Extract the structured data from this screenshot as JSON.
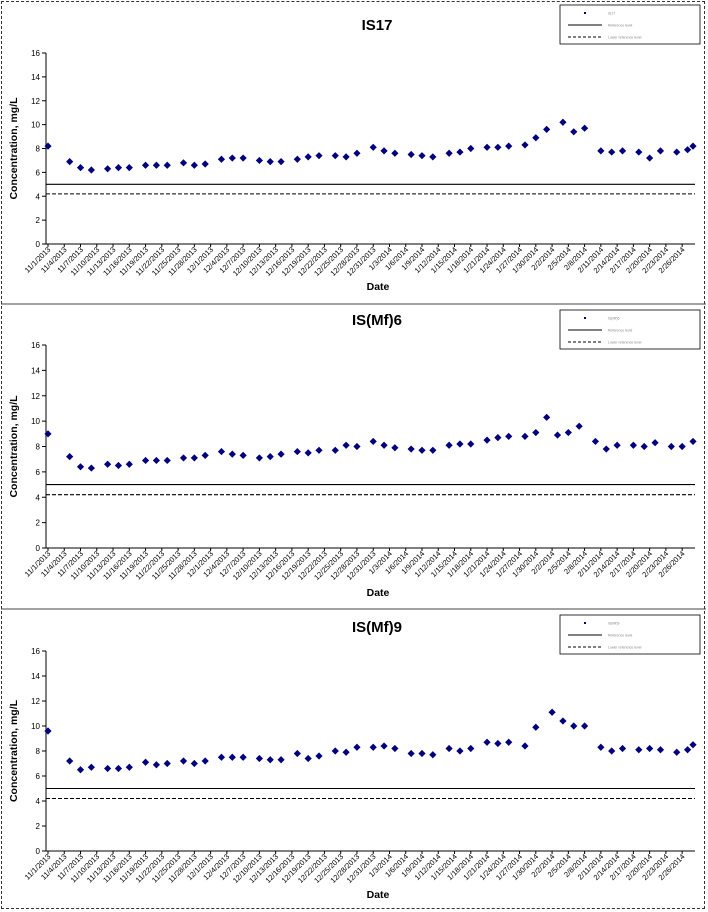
{
  "chart_data": [
    {
      "type": "scatter",
      "title": "IS17",
      "xlabel": "Date",
      "ylabel": "Concentration, mg/L",
      "ylim": [
        0,
        16
      ],
      "yticks": [
        "0",
        "2",
        "4",
        "6",
        "8",
        "10",
        "12",
        "14",
        "16"
      ],
      "xrange": [
        "11/1/2013",
        "2/28/2014"
      ],
      "xticks": [
        "11/1/2013",
        "11/4/2013",
        "11/7/2013",
        "11/10/2013",
        "11/13/2013",
        "11/16/2013",
        "11/19/2013",
        "11/22/2013",
        "11/25/2013",
        "11/28/2013",
        "12/1/2013",
        "12/4/2013",
        "12/7/2013",
        "12/10/2013",
        "12/13/2013",
        "12/16/2013",
        "12/19/2013",
        "12/22/2013",
        "12/25/2013",
        "12/28/2013",
        "12/31/2013",
        "1/3/2014",
        "1/6/2014",
        "1/9/2014",
        "1/12/2014",
        "1/15/2014",
        "1/18/2014",
        "1/21/2014",
        "1/24/2014",
        "1/27/2014",
        "1/30/2014",
        "2/2/2014",
        "2/5/2014",
        "2/8/2014",
        "2/11/2014",
        "2/14/2014",
        "2/17/2014",
        "2/20/2014",
        "2/23/2014",
        "2/26/2014"
      ],
      "legend": [
        "IS17",
        "Reference level",
        "Lower reference level"
      ],
      "legend_position": "top-right",
      "series": [
        {
          "name": "IS17",
          "marker": "diamond",
          "color": "#00007f",
          "x": [
            "11/1/2013",
            "11/5/2013",
            "11/7/2013",
            "11/9/2013",
            "11/12/2013",
            "11/14/2013",
            "11/16/2013",
            "11/19/2013",
            "11/21/2013",
            "11/23/2013",
            "11/26/2013",
            "11/28/2013",
            "11/30/2013",
            "12/3/2013",
            "12/5/2013",
            "12/7/2013",
            "12/10/2013",
            "12/12/2013",
            "12/14/2013",
            "12/17/2013",
            "12/19/2013",
            "12/21/2013",
            "12/24/2013",
            "12/26/2013",
            "12/28/2013",
            "12/31/2013",
            "1/2/2014",
            "1/4/2014",
            "1/7/2014",
            "1/9/2014",
            "1/11/2014",
            "1/14/2014",
            "1/16/2014",
            "1/18/2014",
            "1/21/2014",
            "1/23/2014",
            "1/25/2014",
            "1/28/2014",
            "1/30/2014",
            "2/1/2014",
            "2/4/2014",
            "2/6/2014",
            "2/8/2014",
            "2/11/2014",
            "2/13/2014",
            "2/15/2014",
            "2/18/2014",
            "2/20/2014",
            "2/22/2014",
            "2/25/2014",
            "2/27/2014",
            "2/28/2014"
          ],
          "y": [
            8.2,
            6.9,
            6.4,
            6.2,
            6.3,
            6.4,
            6.4,
            6.6,
            6.6,
            6.6,
            6.8,
            6.6,
            6.7,
            7.1,
            7.2,
            7.2,
            7.0,
            6.9,
            6.9,
            7.1,
            7.3,
            7.4,
            7.4,
            7.3,
            7.6,
            8.1,
            7.8,
            7.6,
            7.5,
            7.4,
            7.3,
            7.6,
            7.7,
            8.0,
            8.1,
            8.1,
            8.2,
            8.3,
            8.9,
            9.6,
            10.2,
            9.4,
            9.7,
            7.8,
            7.7,
            7.8,
            7.7,
            7.2,
            7.8,
            7.7,
            7.9,
            8.2
          ]
        },
        {
          "name": "Reference level",
          "style": "solid",
          "y": 5.0
        },
        {
          "name": "Lower reference level",
          "style": "dashed",
          "y": 4.2
        }
      ]
    },
    {
      "type": "scatter",
      "title": "IS(Mf)6",
      "xlabel": "Date",
      "ylabel": "Concentration, mg/L",
      "ylim": [
        0,
        16
      ],
      "yticks": [
        "0",
        "2",
        "4",
        "6",
        "8",
        "10",
        "12",
        "14",
        "16"
      ],
      "xrange": [
        "11/1/2013",
        "2/28/2014"
      ],
      "xticks": [
        "11/1/2013",
        "11/4/2013",
        "11/7/2013",
        "11/10/2013",
        "11/13/2013",
        "11/16/2013",
        "11/19/2013",
        "11/22/2013",
        "11/25/2013",
        "11/28/2013",
        "12/1/2013",
        "12/4/2013",
        "12/7/2013",
        "12/10/2013",
        "12/13/2013",
        "12/16/2013",
        "12/19/2013",
        "12/22/2013",
        "12/25/2013",
        "12/28/2013",
        "12/31/2013",
        "1/3/2014",
        "1/6/2014",
        "1/9/2014",
        "1/12/2014",
        "1/15/2014",
        "1/18/2014",
        "1/21/2014",
        "1/24/2014",
        "1/27/2014",
        "1/30/2014",
        "2/2/2014",
        "2/5/2014",
        "2/8/2014",
        "2/11/2014",
        "2/14/2014",
        "2/17/2014",
        "2/20/2014",
        "2/23/2014",
        "2/26/2014"
      ],
      "legend": [
        "IS(Mf)6",
        "Reference level",
        "Lower reference level"
      ],
      "legend_position": "top-right",
      "series": [
        {
          "name": "IS(Mf)6",
          "marker": "diamond",
          "color": "#00007f",
          "x": [
            "11/1/2013",
            "11/5/2013",
            "11/7/2013",
            "11/9/2013",
            "11/12/2013",
            "11/14/2013",
            "11/16/2013",
            "11/19/2013",
            "11/21/2013",
            "11/23/2013",
            "11/26/2013",
            "11/28/2013",
            "11/30/2013",
            "12/3/2013",
            "12/5/2013",
            "12/7/2013",
            "12/10/2013",
            "12/12/2013",
            "12/14/2013",
            "12/17/2013",
            "12/19/2013",
            "12/21/2013",
            "12/24/2013",
            "12/26/2013",
            "12/28/2013",
            "12/31/2013",
            "1/2/2014",
            "1/4/2014",
            "1/7/2014",
            "1/9/2014",
            "1/11/2014",
            "1/14/2014",
            "1/16/2014",
            "1/18/2014",
            "1/21/2014",
            "1/23/2014",
            "1/25/2014",
            "1/28/2014",
            "1/30/2014",
            "2/1/2014",
            "2/3/2014",
            "2/5/2014",
            "2/7/2014",
            "2/10/2014",
            "2/12/2014",
            "2/14/2014",
            "2/17/2014",
            "2/19/2014",
            "2/21/2014",
            "2/24/2014",
            "2/26/2014",
            "2/28/2014"
          ],
          "y": [
            9.0,
            7.2,
            6.4,
            6.3,
            6.6,
            6.5,
            6.6,
            6.9,
            6.9,
            6.9,
            7.1,
            7.1,
            7.3,
            7.6,
            7.4,
            7.3,
            7.1,
            7.2,
            7.4,
            7.6,
            7.5,
            7.7,
            7.7,
            8.1,
            8.0,
            8.4,
            8.1,
            7.9,
            7.8,
            7.7,
            7.7,
            8.1,
            8.2,
            8.2,
            8.5,
            8.7,
            8.8,
            8.8,
            9.1,
            10.3,
            8.9,
            9.1,
            9.6,
            8.4,
            7.8,
            8.1,
            8.1,
            8.0,
            8.3,
            8.0,
            8.0,
            8.4
          ]
        },
        {
          "name": "Reference level",
          "style": "solid",
          "y": 5.0
        },
        {
          "name": "Lower reference level",
          "style": "dashed",
          "y": 4.2
        }
      ]
    },
    {
      "type": "scatter",
      "title": "IS(Mf)9",
      "xlabel": "Date",
      "ylabel": "Concentration, mg/L",
      "ylim": [
        0,
        16
      ],
      "yticks": [
        "0",
        "2",
        "4",
        "6",
        "8",
        "10",
        "12",
        "14",
        "16"
      ],
      "xrange": [
        "11/1/2013",
        "2/28/2014"
      ],
      "xticks": [
        "11/1/2013",
        "11/4/2013",
        "11/7/2013",
        "11/10/2013",
        "11/13/2013",
        "11/16/2013",
        "11/19/2013",
        "11/22/2013",
        "11/25/2013",
        "11/28/2013",
        "12/1/2013",
        "12/4/2013",
        "12/7/2013",
        "12/10/2013",
        "12/13/2013",
        "12/16/2013",
        "12/19/2013",
        "12/22/2013",
        "12/25/2013",
        "12/28/2013",
        "12/31/2013",
        "1/3/2014",
        "1/6/2014",
        "1/9/2014",
        "1/12/2014",
        "1/15/2014",
        "1/18/2014",
        "1/21/2014",
        "1/24/2014",
        "1/27/2014",
        "1/30/2014",
        "2/2/2014",
        "2/5/2014",
        "2/8/2014",
        "2/11/2014",
        "2/14/2014",
        "2/17/2014",
        "2/20/2014",
        "2/23/2014",
        "2/26/2014"
      ],
      "legend": [
        "IS(Mf)9",
        "Reference level",
        "Lower reference level"
      ],
      "legend_position": "top-right",
      "series": [
        {
          "name": "IS(Mf)9",
          "marker": "diamond",
          "color": "#00007f",
          "x": [
            "11/1/2013",
            "11/5/2013",
            "11/7/2013",
            "11/9/2013",
            "11/12/2013",
            "11/14/2013",
            "11/16/2013",
            "11/19/2013",
            "11/21/2013",
            "11/23/2013",
            "11/26/2013",
            "11/28/2013",
            "11/30/2013",
            "12/3/2013",
            "12/5/2013",
            "12/7/2013",
            "12/10/2013",
            "12/12/2013",
            "12/14/2013",
            "12/17/2013",
            "12/19/2013",
            "12/21/2013",
            "12/24/2013",
            "12/26/2013",
            "12/28/2013",
            "12/31/2013",
            "1/2/2014",
            "1/4/2014",
            "1/7/2014",
            "1/9/2014",
            "1/11/2014",
            "1/14/2014",
            "1/16/2014",
            "1/18/2014",
            "1/21/2014",
            "1/23/2014",
            "1/25/2014",
            "1/28/2014",
            "1/30/2014",
            "2/2/2014",
            "2/4/2014",
            "2/6/2014",
            "2/8/2014",
            "2/11/2014",
            "2/13/2014",
            "2/15/2014",
            "2/18/2014",
            "2/20/2014",
            "2/22/2014",
            "2/25/2014",
            "2/27/2014",
            "2/28/2014"
          ],
          "y": [
            9.6,
            7.2,
            6.5,
            6.7,
            6.6,
            6.6,
            6.7,
            7.1,
            6.9,
            7.0,
            7.2,
            7.0,
            7.2,
            7.5,
            7.5,
            7.5,
            7.4,
            7.3,
            7.3,
            7.8,
            7.4,
            7.6,
            8.0,
            7.9,
            8.3,
            8.3,
            8.4,
            8.2,
            7.8,
            7.8,
            7.7,
            8.2,
            8.0,
            8.2,
            8.7,
            8.6,
            8.7,
            8.4,
            9.9,
            11.1,
            10.4,
            10.0,
            10.0,
            8.3,
            8.0,
            8.2,
            8.1,
            8.2,
            8.1,
            7.9,
            8.1,
            8.5
          ]
        },
        {
          "name": "Reference level",
          "style": "solid",
          "y": 5.0
        },
        {
          "name": "Lower reference level",
          "style": "dashed",
          "y": 4.2
        }
      ]
    }
  ]
}
